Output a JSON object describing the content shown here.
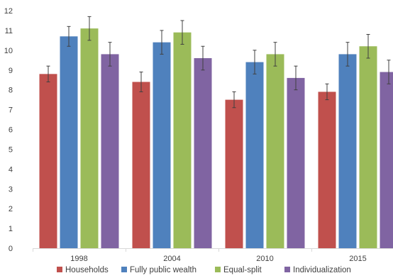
{
  "chart_data": {
    "type": "bar",
    "title": "",
    "xlabel": "",
    "ylabel": "",
    "categories": [
      "1998",
      "2004",
      "2010",
      "2015"
    ],
    "ylim": [
      0,
      12
    ],
    "yticks": [
      0,
      1,
      2,
      3,
      4,
      5,
      6,
      7,
      8,
      9,
      10,
      11,
      12
    ],
    "grid": false,
    "legend_position": "bottom",
    "error_bars": true,
    "series": [
      {
        "name": "Households",
        "color": "#c0504d",
        "values": [
          8.8,
          8.4,
          7.5,
          7.9
        ],
        "error_low": [
          8.4,
          7.9,
          7.1,
          7.5
        ],
        "error_high": [
          9.2,
          8.9,
          7.9,
          8.3
        ]
      },
      {
        "name": "Fully public wealth",
        "color": "#4f81bd",
        "values": [
          10.7,
          10.4,
          9.4,
          9.8
        ],
        "error_low": [
          10.2,
          9.8,
          8.8,
          9.2
        ],
        "error_high": [
          11.2,
          11.0,
          10.0,
          10.4
        ]
      },
      {
        "name": "Equal-split",
        "color": "#9bbb59",
        "values": [
          11.1,
          10.9,
          9.8,
          10.2
        ],
        "error_low": [
          10.5,
          10.3,
          9.2,
          9.6
        ],
        "error_high": [
          11.7,
          11.5,
          10.4,
          10.8
        ]
      },
      {
        "name": "Individualization",
        "color": "#8064a2",
        "values": [
          9.8,
          9.6,
          8.6,
          8.9
        ],
        "error_low": [
          9.2,
          9.0,
          8.0,
          8.3
        ],
        "error_high": [
          10.4,
          10.2,
          9.2,
          9.5
        ]
      }
    ]
  }
}
